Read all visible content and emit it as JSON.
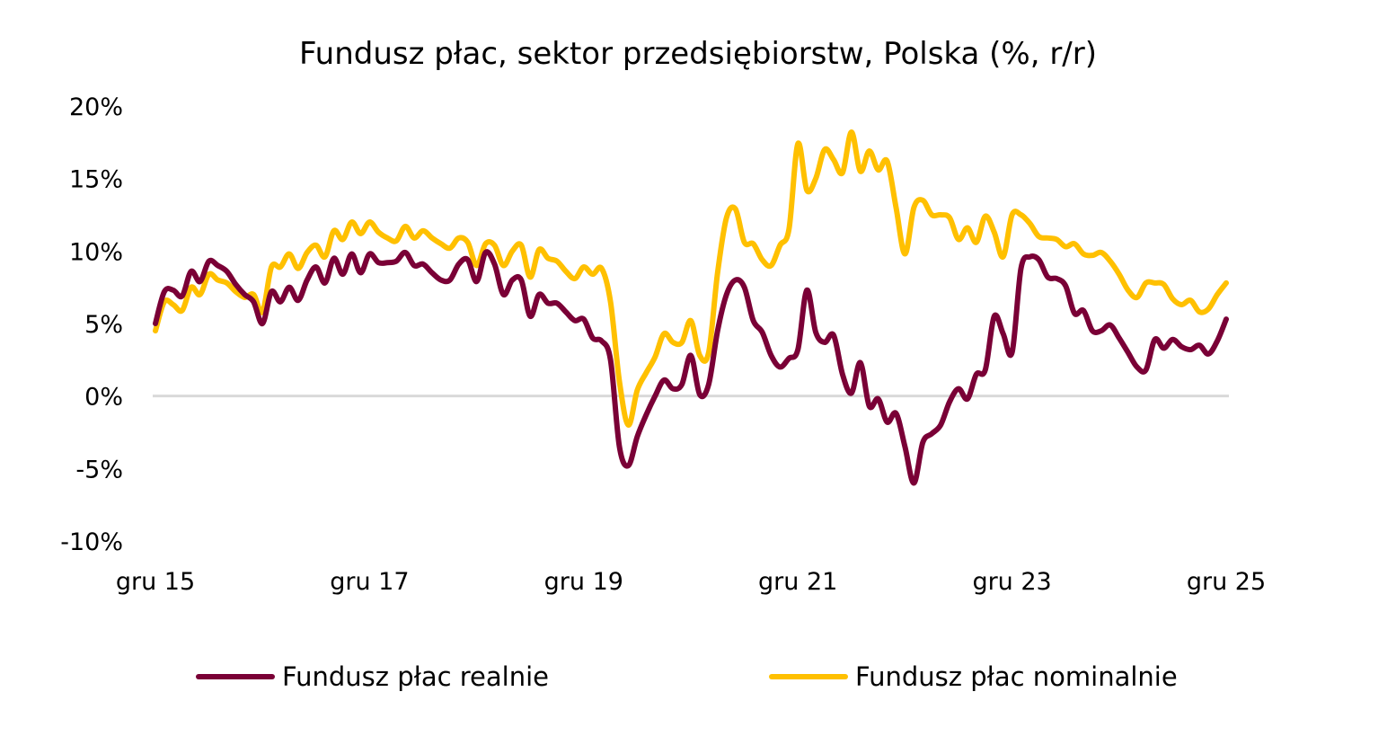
{
  "chart_data": {
    "type": "line",
    "title": "Fundusz płac, sektor przedsiębiorstw, Polska (%, r/r)",
    "xlabel": "",
    "ylabel": "",
    "ylim": [
      -10,
      20
    ],
    "yticks": [
      "20%",
      "15%",
      "10%",
      "5%",
      "0%",
      "-5%",
      "-10%"
    ],
    "ytick_values": [
      20,
      15,
      10,
      5,
      0,
      -5,
      -10
    ],
    "xticks": [
      "gru 15",
      "gru 17",
      "gru 19",
      "gru 21",
      "gru 23",
      "gru 25"
    ],
    "grid": "zero line only",
    "legend_position": "bottom",
    "x": [
      "gru 15",
      "sty 16",
      "lut 16",
      "mar 16",
      "kwi 16",
      "maj 16",
      "cze 16",
      "lip 16",
      "sie 16",
      "wrz 16",
      "paź 16",
      "lis 16",
      "gru 16",
      "sty 17",
      "lut 17",
      "mar 17",
      "kwi 17",
      "maj 17",
      "cze 17",
      "lip 17",
      "sie 17",
      "wrz 17",
      "paź 17",
      "lis 17",
      "gru 17",
      "sty 18",
      "lut 18",
      "mar 18",
      "kwi 18",
      "maj 18",
      "cze 18",
      "lip 18",
      "sie 18",
      "wrz 18",
      "paź 18",
      "lis 18",
      "gru 18",
      "sty 19",
      "lut 19",
      "mar 19",
      "kwi 19",
      "maj 19",
      "cze 19",
      "lip 19",
      "sie 19",
      "wrz 19",
      "paź 19",
      "lis 19",
      "gru 19",
      "sty 20",
      "lut 20",
      "mar 20",
      "kwi 20",
      "maj 20",
      "cze 20",
      "lip 20",
      "sie 20",
      "wrz 20",
      "paź 20",
      "lis 20",
      "gru 20",
      "sty 21",
      "lut 21",
      "mar 21",
      "kwi 21",
      "maj 21",
      "cze 21",
      "lip 21",
      "sie 21",
      "wrz 21",
      "paź 21",
      "lis 21",
      "gru 21",
      "sty 22",
      "lut 22",
      "mar 22",
      "kwi 22",
      "maj 22",
      "cze 22",
      "lip 22",
      "sie 22",
      "wrz 22",
      "paź 22",
      "lis 22",
      "gru 22",
      "sty 23",
      "lut 23",
      "mar 23",
      "kwi 23",
      "maj 23",
      "cze 23",
      "lip 23",
      "sie 23",
      "wrz 23",
      "paź 23",
      "lis 23",
      "gru 23",
      "sty 24",
      "lut 24",
      "mar 24",
      "kwi 24",
      "maj 24",
      "cze 24",
      "lip 24",
      "sie 24",
      "wrz 24",
      "paź 24",
      "lis 24",
      "gru 24",
      "sty 25",
      "lut 25",
      "mar 25",
      "kwi 25",
      "maj 25",
      "cze 25",
      "lip 25",
      "sie 25",
      "wrz 25",
      "paź 25",
      "lis 25",
      "gru 25"
    ],
    "series": [
      {
        "name": "Fundusz płac realnie",
        "color": "#7a0036",
        "values": [
          5.0,
          7.2,
          7.3,
          6.9,
          8.6,
          7.9,
          9.3,
          9.0,
          8.6,
          7.7,
          7.0,
          6.5,
          5.0,
          7.2,
          6.5,
          7.5,
          6.6,
          8.0,
          8.9,
          7.8,
          9.5,
          8.4,
          9.8,
          8.5,
          9.8,
          9.2,
          9.2,
          9.3,
          9.9,
          9.0,
          9.1,
          8.5,
          8.0,
          8.0,
          9.1,
          9.4,
          7.9,
          9.9,
          9.1,
          7.0,
          8.0,
          8.0,
          5.5,
          7.0,
          6.4,
          6.4,
          5.8,
          5.2,
          5.3,
          4.0,
          3.8,
          2.5,
          -3.5,
          -4.8,
          -2.8,
          -1.3,
          0.0,
          1.1,
          0.5,
          0.8,
          2.8,
          0.1,
          0.8,
          4.5,
          7.0,
          8.0,
          7.5,
          5.2,
          4.4,
          2.8,
          2.0,
          2.6,
          3.2,
          7.3,
          4.4,
          3.7,
          4.2,
          1.5,
          0.2,
          2.3,
          -0.7,
          -0.2,
          -1.8,
          -1.2,
          -3.5,
          -6.0,
          -3.2,
          -2.6,
          -2.0,
          -0.4,
          0.5,
          -0.2,
          1.5,
          1.8,
          5.5,
          4.3,
          3.0,
          8.8,
          9.6,
          9.4,
          8.2,
          8.1,
          7.6,
          5.7,
          5.9,
          4.5,
          4.5,
          4.9,
          4.0,
          3.0,
          2.0,
          1.8,
          3.9,
          3.3,
          3.9,
          3.4,
          3.2,
          3.5,
          2.9,
          3.8,
          5.3
        ]
      },
      {
        "name": "Fundusz płac nominalnie",
        "color": "#ffc000",
        "values": [
          4.5,
          6.5,
          6.3,
          5.9,
          7.5,
          7.0,
          8.4,
          8.0,
          7.8,
          7.2,
          6.8,
          7.0,
          5.8,
          8.9,
          8.9,
          9.8,
          8.8,
          9.9,
          10.4,
          9.6,
          11.4,
          10.8,
          12.0,
          11.2,
          12.0,
          11.3,
          10.9,
          10.7,
          11.7,
          10.9,
          11.4,
          10.9,
          10.5,
          10.2,
          10.9,
          10.6,
          9.0,
          10.5,
          10.4,
          9.0,
          10.0,
          10.4,
          8.2,
          10.1,
          9.5,
          9.3,
          8.6,
          8.1,
          8.9,
          8.4,
          8.8,
          6.5,
          1.0,
          -2.0,
          0.4,
          1.6,
          2.7,
          4.3,
          3.7,
          3.7,
          5.2,
          2.8,
          3.0,
          8.5,
          12.3,
          12.9,
          10.6,
          10.5,
          9.4,
          9.0,
          10.4,
          11.5,
          17.4,
          14.2,
          15.0,
          17.0,
          16.3,
          15.4,
          18.2,
          15.5,
          16.9,
          15.6,
          16.2,
          13.0,
          9.8,
          13.0,
          13.5,
          12.5,
          12.5,
          12.3,
          10.8,
          11.6,
          10.6,
          12.4,
          11.3,
          9.6,
          12.5,
          12.5,
          11.9,
          11.0,
          10.9,
          10.8,
          10.3,
          10.5,
          9.8,
          9.7,
          9.9,
          9.3,
          8.4,
          7.3,
          6.8,
          7.8,
          7.8,
          7.7,
          6.7,
          6.3,
          6.6,
          5.8,
          6.0,
          7.0,
          7.8
        ]
      }
    ]
  }
}
